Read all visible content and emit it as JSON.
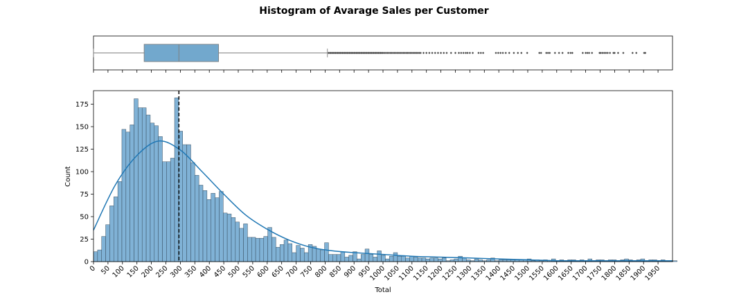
{
  "chart_data": [
    {
      "type": "bar",
      "panel": "histogram",
      "title": "Histogram of Avarage Sales per Customer",
      "xlabel": "Total",
      "ylabel": "Count",
      "xlim": [
        0,
        2000
      ],
      "ylim": [
        0,
        190
      ],
      "bin_width": 14,
      "x_tick_labels": [
        "0",
        "50",
        "100",
        "150",
        "200",
        "250",
        "300",
        "350",
        "400",
        "450",
        "500",
        "550",
        "600",
        "650",
        "700",
        "750",
        "800",
        "850",
        "900",
        "950",
        "1000",
        "1050",
        "1100",
        "1150",
        "1200",
        "1250",
        "1300",
        "1350",
        "1400",
        "1450",
        "1500",
        "1550",
        "1600",
        "1650",
        "1700",
        "1750",
        "1800",
        "1850",
        "1900",
        "1950"
      ],
      "y_tick_labels": [
        "0",
        "25",
        "50",
        "75",
        "100",
        "125",
        "150",
        "175"
      ],
      "counts": [
        11,
        13,
        28,
        41,
        62,
        72,
        89,
        147,
        144,
        152,
        181,
        171,
        171,
        163,
        154,
        151,
        139,
        111,
        111,
        115,
        182,
        145,
        130,
        130,
        110,
        96,
        85,
        79,
        69,
        76,
        71,
        78,
        54,
        53,
        49,
        44,
        37,
        42,
        27,
        27,
        26,
        26,
        28,
        38,
        27,
        16,
        19,
        24,
        20,
        10,
        18,
        15,
        10,
        19,
        17,
        14,
        13,
        21,
        8,
        8,
        8,
        11,
        5,
        7,
        11,
        3,
        8,
        14,
        8,
        5,
        12,
        7,
        3,
        6,
        10,
        6,
        6,
        4,
        6,
        5,
        4,
        4,
        3,
        4,
        4,
        3,
        4,
        1,
        2,
        3,
        6,
        4,
        2,
        1,
        3,
        2,
        1,
        2,
        4,
        1,
        2,
        2,
        2,
        2,
        2,
        2,
        2,
        3,
        1,
        2,
        1,
        2,
        1,
        3,
        1,
        2,
        1,
        2,
        2,
        1,
        2,
        1,
        3,
        1,
        2,
        2,
        1,
        2,
        2,
        1,
        2,
        3,
        2,
        1,
        2,
        3,
        1,
        2,
        2,
        1,
        2,
        1,
        1,
        1
      ],
      "kde": {
        "x": [
          0,
          75,
          150,
          225,
          300,
          375,
          450,
          525,
          600,
          675,
          750,
          825,
          900,
          1000,
          1100,
          1200,
          1300,
          1400,
          1500,
          1600,
          1700,
          1800,
          1900,
          2000
        ],
        "y": [
          35,
          85,
          118,
          134,
          124,
          100,
          75,
          52,
          36,
          24,
          16,
          12,
          10,
          8,
          6,
          5,
          4,
          3,
          2,
          1,
          1,
          1,
          1,
          1
        ]
      },
      "mean_line": 295,
      "colors": {
        "bar": "#6aa4cf",
        "bar_edge": "#3a4f60",
        "kde": "#1f77b4",
        "mean_line": "#000000"
      }
    },
    {
      "type": "box",
      "panel": "boxplot",
      "xlim": [
        0,
        2000
      ],
      "whisker_low": 0,
      "q1": 175,
      "median": 295,
      "q3": 432,
      "whisker_high": 808,
      "outliers": [
        812,
        816,
        820,
        824,
        828,
        832,
        836,
        840,
        844,
        848,
        852,
        856,
        860,
        864,
        868,
        872,
        876,
        880,
        884,
        888,
        892,
        896,
        900,
        904,
        908,
        912,
        916,
        920,
        924,
        928,
        932,
        936,
        940,
        944,
        948,
        952,
        956,
        960,
        964,
        968,
        972,
        976,
        980,
        984,
        988,
        992,
        996,
        1000,
        1005,
        1010,
        1015,
        1020,
        1025,
        1030,
        1035,
        1040,
        1045,
        1050,
        1055,
        1060,
        1065,
        1070,
        1075,
        1080,
        1085,
        1090,
        1095,
        1100,
        1105,
        1110,
        1115,
        1120,
        1125,
        1130,
        1140,
        1150,
        1160,
        1170,
        1180,
        1190,
        1200,
        1210,
        1220,
        1235,
        1250,
        1262,
        1270,
        1278,
        1286,
        1292,
        1300,
        1310,
        1330,
        1338,
        1346,
        1390,
        1398,
        1406,
        1414,
        1424,
        1436,
        1452,
        1466,
        1478,
        1498,
        1540,
        1546,
        1564,
        1570,
        1576,
        1594,
        1608,
        1620,
        1640,
        1648,
        1654,
        1690,
        1700,
        1706,
        1712,
        1722,
        1748,
        1752,
        1758,
        1764,
        1770,
        1776,
        1784,
        1796,
        1800,
        1812,
        1830,
        1862,
        1875,
        1902,
        1906
      ],
      "colors": {
        "box": "#72a8cd",
        "line": "#7f7f7f",
        "outlier": "#4a4a4a"
      }
    }
  ]
}
